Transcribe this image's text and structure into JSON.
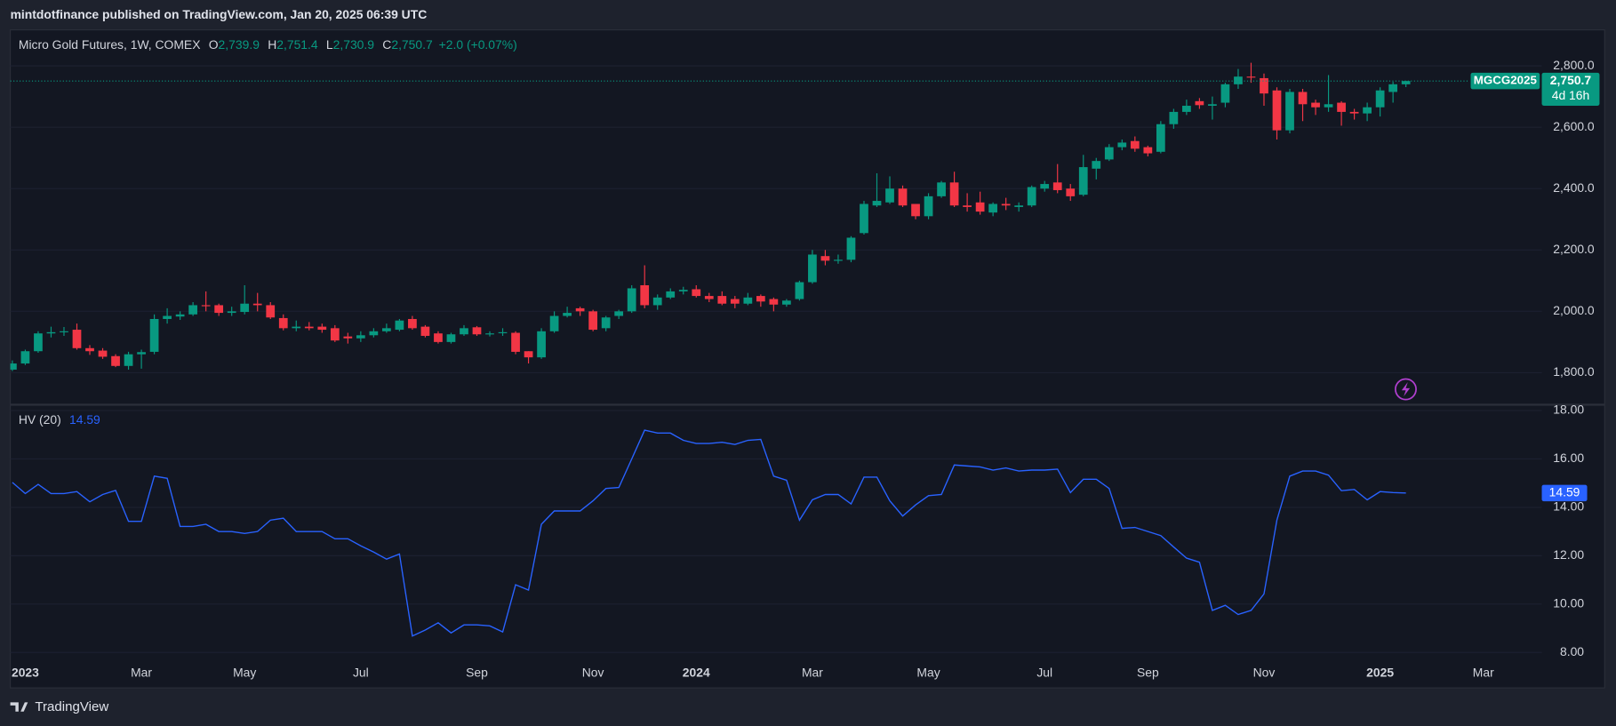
{
  "page": {
    "publisher_line": "mintdotfinance published on TradingView.com, Jan 20, 2025 06:39 UTC",
    "footer_brand": "TradingView"
  },
  "chart_data": [
    {
      "type": "candlestick",
      "title": "Micro Gold Futures, 1W, COMEX",
      "legend": [
        {
          "key": "O",
          "label": "2,739.9"
        },
        {
          "key": "H",
          "label": "2,751.4"
        },
        {
          "key": "L",
          "label": "2,730.9"
        },
        {
          "key": "C",
          "label": "2,750.7"
        }
      ],
      "change": "+2.0 (+0.07%)",
      "symbol_tag": "MGCG2025",
      "countdown": "4d 16h",
      "last_price": {
        "value": 2750.7,
        "label": "2,750.7"
      },
      "up_color": "#089981",
      "down_color": "#f23645",
      "categories": [
        null,
        "2023",
        null,
        null,
        null,
        null,
        null,
        null,
        null,
        null,
        "Mar",
        null,
        null,
        null,
        null,
        null,
        null,
        null,
        "May",
        null,
        null,
        null,
        null,
        null,
        null,
        null,
        null,
        "Jul",
        null,
        null,
        null,
        null,
        null,
        null,
        null,
        null,
        "Sep",
        null,
        null,
        null,
        null,
        null,
        null,
        null,
        null,
        "Nov",
        null,
        null,
        null,
        null,
        null,
        null,
        null,
        "2024",
        null,
        null,
        null,
        null,
        null,
        null,
        null,
        null,
        "Mar",
        null,
        null,
        null,
        null,
        null,
        null,
        null,
        null,
        "May",
        null,
        null,
        null,
        null,
        null,
        null,
        null,
        null,
        "Jul",
        null,
        null,
        null,
        null,
        null,
        null,
        null,
        "Sep",
        null,
        null,
        null,
        null,
        null,
        null,
        null,
        null,
        "Nov",
        null,
        null,
        null,
        null,
        null,
        null,
        null,
        null,
        "2025",
        null,
        null,
        null,
        null,
        null,
        null,
        null,
        "Mar"
      ],
      "open": [
        1810,
        1830,
        1870,
        1928,
        1932,
        1940,
        1880,
        1872,
        1854,
        1822,
        1860,
        1868,
        1975,
        1983,
        1990,
        2020,
        2020,
        1995,
        1998,
        2025,
        2020,
        1978,
        1945,
        1950,
        1950,
        1945,
        1918,
        1912,
        1922,
        1935,
        1940,
        1975,
        1950,
        1928,
        1900,
        1925,
        1948,
        1925,
        1930,
        1930,
        1870,
        1850,
        1935,
        1985,
        2010,
        2000,
        1945,
        1985,
        2000,
        2085,
        2020,
        2045,
        2065,
        2072,
        2050,
        2050,
        2040,
        2025,
        2050,
        2040,
        2022,
        2040,
        2095,
        2180,
        2165,
        2168,
        2255,
        2345,
        2355,
        2400,
        2350,
        2310,
        2375,
        2420,
        2345,
        2355,
        2322,
        2350,
        2340,
        2345,
        2400,
        2420,
        2400,
        2380,
        2465,
        2495,
        2535,
        2555,
        2535,
        2520,
        2610,
        2650,
        2685,
        2670,
        2680,
        2740,
        2765,
        2760,
        2720,
        2590,
        2715,
        2680,
        2665,
        2680,
        2650,
        2645,
        2665,
        2715,
        2739.9,
        null,
        null,
        null,
        null,
        null,
        null
      ],
      "high": [
        1840,
        1875,
        1935,
        1950,
        1949,
        1960,
        1890,
        1880,
        1860,
        1868,
        1875,
        1990,
        2010,
        2000,
        2030,
        2065,
        2025,
        2015,
        2085,
        2060,
        2030,
        1990,
        1970,
        1965,
        1960,
        1955,
        1930,
        1935,
        1945,
        1960,
        1975,
        1985,
        1955,
        1935,
        1930,
        1955,
        1952,
        1935,
        1945,
        1935,
        1870,
        1945,
        2000,
        2015,
        2015,
        2005,
        1985,
        2005,
        2085,
        2150,
        2055,
        2075,
        2080,
        2085,
        2060,
        2065,
        2050,
        2060,
        2055,
        2045,
        2040,
        2100,
        2200,
        2200,
        2185,
        2245,
        2360,
        2450,
        2440,
        2410,
        2350,
        2385,
        2425,
        2455,
        2385,
        2390,
        2355,
        2370,
        2355,
        2410,
        2425,
        2480,
        2415,
        2510,
        2500,
        2545,
        2560,
        2570,
        2540,
        2620,
        2660,
        2690,
        2695,
        2700,
        2745,
        2790,
        2810,
        2775,
        2730,
        2725,
        2725,
        2690,
        2770,
        2685,
        2660,
        2680,
        2730,
        2748,
        2751.4,
        null,
        null,
        null,
        null,
        null,
        null
      ],
      "low": [
        1805,
        1825,
        1865,
        1915,
        1920,
        1875,
        1858,
        1845,
        1818,
        1810,
        1813,
        1860,
        1960,
        1972,
        1985,
        2000,
        1985,
        1985,
        1990,
        2000,
        1975,
        1938,
        1935,
        1938,
        1930,
        1900,
        1895,
        1900,
        1915,
        1930,
        1935,
        1940,
        1915,
        1895,
        1895,
        1920,
        1920,
        1918,
        1920,
        1860,
        1830,
        1845,
        1930,
        1980,
        1985,
        1935,
        1935,
        1975,
        1995,
        2010,
        2005,
        2040,
        2055,
        2045,
        2030,
        2020,
        2010,
        2020,
        2015,
        2000,
        2015,
        2035,
        2090,
        2150,
        2155,
        2160,
        2250,
        2340,
        2350,
        2340,
        2300,
        2300,
        2370,
        2340,
        2325,
        2315,
        2310,
        2330,
        2325,
        2340,
        2390,
        2385,
        2360,
        2375,
        2430,
        2490,
        2525,
        2520,
        2505,
        2515,
        2595,
        2640,
        2660,
        2625,
        2665,
        2725,
        2745,
        2670,
        2560,
        2580,
        2620,
        2640,
        2650,
        2605,
        2625,
        2620,
        2635,
        2680,
        2730.9,
        null,
        null,
        null,
        null,
        null,
        null
      ],
      "close": [
        1830,
        1870,
        1928,
        1932,
        1935,
        1880,
        1870,
        1852,
        1822,
        1860,
        1867,
        1975,
        1985,
        1990,
        2020,
        2018,
        1995,
        2000,
        2025,
        2020,
        1980,
        1945,
        1950,
        1945,
        1940,
        1905,
        1912,
        1922,
        1935,
        1945,
        1970,
        1945,
        1920,
        1900,
        1925,
        1945,
        1925,
        1928,
        1932,
        1868,
        1850,
        1935,
        1985,
        1995,
        2000,
        1940,
        1980,
        2000,
        2075,
        2020,
        2045,
        2065,
        2070,
        2050,
        2040,
        2025,
        2025,
        2045,
        2032,
        2022,
        2035,
        2095,
        2185,
        2165,
        2168,
        2240,
        2350,
        2360,
        2400,
        2345,
        2310,
        2375,
        2420,
        2345,
        2340,
        2325,
        2350,
        2345,
        2345,
        2405,
        2415,
        2395,
        2375,
        2470,
        2490,
        2535,
        2550,
        2530,
        2515,
        2610,
        2650,
        2670,
        2672,
        2675,
        2740,
        2765,
        2762,
        2710,
        2590,
        2715,
        2675,
        2665,
        2675,
        2650,
        2645,
        2665,
        2720,
        2740,
        2750.7,
        null,
        null,
        null,
        null,
        null,
        null
      ],
      "ylim": [
        1699,
        2914
      ],
      "yticks": [
        {
          "value": 1800,
          "label": "1,800.0"
        },
        {
          "value": 2000,
          "label": "2,000.0"
        },
        {
          "value": 2200,
          "label": "2,200.0"
        },
        {
          "value": 2400,
          "label": "2,400.0"
        },
        {
          "value": 2600,
          "label": "2,600.0"
        },
        {
          "value": 2800,
          "label": "2,800.0"
        }
      ],
      "grid": true
    },
    {
      "type": "line",
      "title": "HV (20)",
      "color": "#2962ff",
      "values": [
        15.03,
        14.57,
        14.95,
        14.57,
        14.57,
        14.65,
        14.23,
        14.53,
        14.7,
        13.42,
        13.42,
        15.29,
        15.2,
        13.21,
        13.21,
        13.3,
        13.0,
        13.0,
        12.92,
        13.0,
        13.47,
        13.55,
        13.0,
        13.0,
        13.0,
        12.7,
        12.7,
        12.41,
        12.15,
        11.86,
        12.07,
        8.68,
        8.93,
        9.23,
        8.81,
        9.14,
        9.14,
        9.1,
        8.85,
        10.8,
        10.58,
        13.3,
        13.85,
        13.85,
        13.85,
        14.27,
        14.78,
        14.82,
        16.0,
        17.19,
        17.07,
        17.07,
        16.77,
        16.64,
        16.64,
        16.69,
        16.6,
        16.77,
        16.81,
        15.29,
        15.12,
        13.47,
        14.31,
        14.53,
        14.53,
        14.14,
        15.25,
        15.25,
        14.27,
        13.64,
        14.1,
        14.48,
        14.53,
        15.75,
        15.71,
        15.67,
        15.54,
        15.63,
        15.5,
        15.54,
        15.54,
        15.58,
        14.61,
        15.16,
        15.16,
        14.78,
        13.13,
        13.17,
        13.0,
        12.83,
        12.36,
        11.9,
        11.73,
        9.74,
        9.95,
        9.57,
        9.74,
        10.42,
        13.47,
        15.29,
        15.5,
        15.5,
        15.33,
        14.69,
        14.74,
        14.31,
        14.65,
        14.61,
        14.59,
        null,
        null,
        null,
        null,
        null,
        null
      ],
      "ylim": [
        7.6,
        18.2
      ],
      "yticks": [
        {
          "value": 8,
          "label": "8.00"
        },
        {
          "value": 10,
          "label": "10.00"
        },
        {
          "value": 12,
          "label": "12.00"
        },
        {
          "value": 14,
          "label": "14.00"
        },
        {
          "value": 16,
          "label": "16.00"
        },
        {
          "value": 18,
          "label": "18.00"
        }
      ],
      "grid": true
    }
  ]
}
